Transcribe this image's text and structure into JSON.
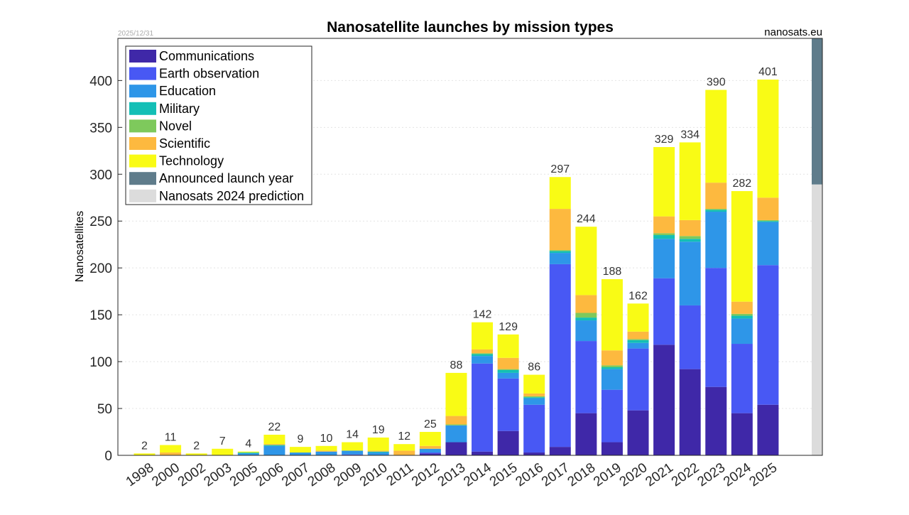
{
  "chart_data": {
    "type": "bar",
    "stacked": true,
    "title": "Nanosatellite launches by mission types",
    "date_label": "2025/12/31",
    "source_label": "nanosats.eu",
    "xlabel": "",
    "ylabel": "Nanosatellites",
    "ylim": [
      0,
      445
    ],
    "yticks": [
      0,
      50,
      100,
      150,
      200,
      250,
      300,
      350,
      400
    ],
    "grid": true,
    "legend_position": "top-left",
    "categories": [
      "1998",
      "2000",
      "2002",
      "2003",
      "2005",
      "2006",
      "2007",
      "2008",
      "2009",
      "2010",
      "2011",
      "2012",
      "2013",
      "2014",
      "2015",
      "2016",
      "2017",
      "2018",
      "2019",
      "2020",
      "2021",
      "2022",
      "2023",
      "2024",
      "2025"
    ],
    "totals": [
      2,
      11,
      2,
      7,
      4,
      22,
      9,
      10,
      14,
      19,
      12,
      25,
      88,
      142,
      129,
      86,
      297,
      244,
      188,
      162,
      329,
      334,
      390,
      282,
      401
    ],
    "series": [
      {
        "name": "Communications",
        "color": "#3f28a8",
        "values": [
          0,
          0,
          0,
          0,
          0,
          0,
          0,
          0,
          0,
          0,
          0,
          2,
          14,
          4,
          26,
          3,
          9,
          45,
          14,
          48,
          118,
          92,
          73,
          45,
          54
        ]
      },
      {
        "name": "Earth observation",
        "color": "#4858f4",
        "values": [
          0,
          0,
          0,
          0,
          0,
          0,
          0,
          0,
          1,
          0,
          0,
          1,
          0,
          94,
          56,
          51,
          195,
          77,
          56,
          66,
          71,
          68,
          127,
          74,
          149
        ]
      },
      {
        "name": "Education",
        "color": "#2e96e8",
        "values": [
          0,
          0,
          0,
          0,
          2,
          10,
          3,
          4,
          4,
          3,
          0,
          4,
          18,
          8,
          6,
          7,
          12,
          22,
          22,
          6,
          42,
          68,
          60,
          27,
          46
        ]
      },
      {
        "name": "Military",
        "color": "#13bfb6",
        "values": [
          0,
          0,
          0,
          0,
          1,
          1,
          0,
          0,
          0,
          1,
          0,
          0,
          0,
          2,
          3,
          1,
          2,
          3,
          2,
          3,
          4,
          3,
          2,
          3,
          1
        ]
      },
      {
        "name": "Novel",
        "color": "#7ec95c",
        "values": [
          0,
          0,
          0,
          0,
          0,
          0,
          0,
          0,
          0,
          0,
          0,
          0,
          1,
          1,
          1,
          1,
          1,
          5,
          2,
          1,
          2,
          3,
          1,
          2,
          1
        ]
      },
      {
        "name": "Scientific",
        "color": "#fdb93f",
        "values": [
          0,
          3,
          0,
          0,
          0,
          1,
          0,
          1,
          0,
          1,
          5,
          3,
          9,
          4,
          12,
          3,
          44,
          19,
          16,
          8,
          18,
          17,
          28,
          13,
          24
        ]
      },
      {
        "name": "Technology",
        "color": "#f9fb15",
        "values": [
          2,
          8,
          2,
          7,
          1,
          10,
          6,
          5,
          9,
          14,
          7,
          15,
          46,
          29,
          25,
          20,
          34,
          73,
          76,
          30,
          74,
          83,
          99,
          118,
          126
        ]
      }
    ],
    "overlay_series": [
      {
        "name": "Announced launch year",
        "color": "#5f7c8b",
        "range": [
          289,
          445
        ]
      },
      {
        "name": "Nanosats 2024 prediction",
        "color": "#dcdcdc",
        "range": [
          0,
          289
        ]
      }
    ],
    "legend": [
      {
        "label": "Communications",
        "color": "#3f28a8"
      },
      {
        "label": "Earth observation",
        "color": "#4858f4"
      },
      {
        "label": "Education",
        "color": "#2e96e8"
      },
      {
        "label": "Military",
        "color": "#13bfb6"
      },
      {
        "label": "Novel",
        "color": "#7ec95c"
      },
      {
        "label": "Scientific",
        "color": "#fdb93f"
      },
      {
        "label": "Technology",
        "color": "#f9fb15"
      },
      {
        "label": "Announced launch year",
        "color": "#5f7c8b"
      },
      {
        "label": "Nanosats 2024 prediction",
        "color": "#dcdcdc"
      }
    ]
  }
}
